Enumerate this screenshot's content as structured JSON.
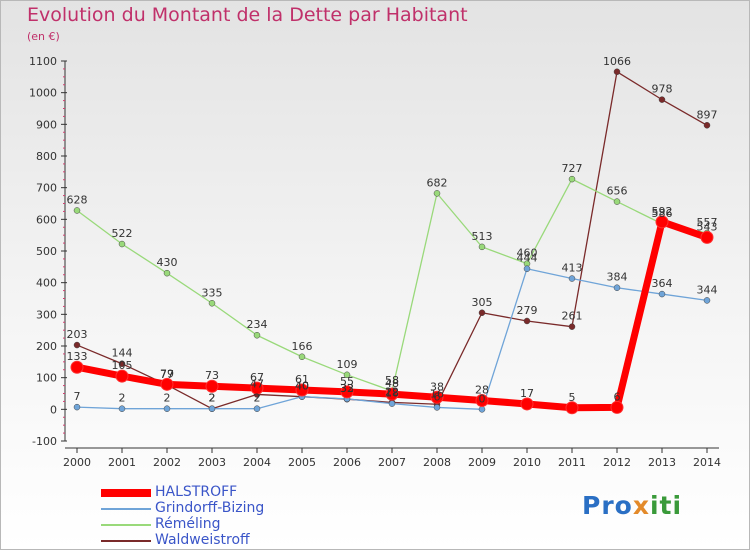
{
  "chart_data": {
    "type": "line",
    "title": "Evolution du Montant de la Dette par Habitant",
    "subtitle": "(en €)",
    "x": [
      "2000",
      "2001",
      "2002",
      "2003",
      "2004",
      "2005",
      "2006",
      "2007",
      "2008",
      "2009",
      "2010",
      "2011",
      "2012",
      "2013",
      "2014"
    ],
    "ylim": [
      -100,
      1100
    ],
    "yticks": [
      -100,
      0,
      100,
      200,
      300,
      400,
      500,
      600,
      700,
      800,
      900,
      1000,
      1100
    ],
    "grid": false,
    "legend_position": "bottom-left",
    "series": [
      {
        "name": "HALSTROFF",
        "color": "#ff0000",
        "values": [
          133,
          105,
          79,
          73,
          67,
          61,
          55,
          48,
          38,
          28,
          17,
          5,
          6,
          592,
          543
        ]
      },
      {
        "name": "Grindorff-Bizing",
        "color": "#6fa4d8",
        "values": [
          7,
          2,
          2,
          2,
          2,
          40,
          33,
          18,
          6,
          0,
          444,
          413,
          384,
          364,
          344
        ]
      },
      {
        "name": "Réméling",
        "color": "#99d97a",
        "values": [
          628,
          522,
          430,
          335,
          234,
          166,
          109,
          58,
          682,
          513,
          460,
          727,
          656,
          586,
          557
        ]
      },
      {
        "name": "Waldweistroff",
        "color": "#7a2a2a",
        "values": [
          203,
          144,
          77,
          2,
          47,
          40,
          32,
          22,
          16,
          305,
          279,
          261,
          1066,
          978,
          897
        ]
      }
    ]
  },
  "legend": {
    "items": [
      "HALSTROFF",
      "Grindorff-Bizing",
      "Réméling",
      "Waldweistroff"
    ]
  },
  "logo": {
    "part1": "Pro",
    "part2": "x",
    "part3": "iti"
  }
}
